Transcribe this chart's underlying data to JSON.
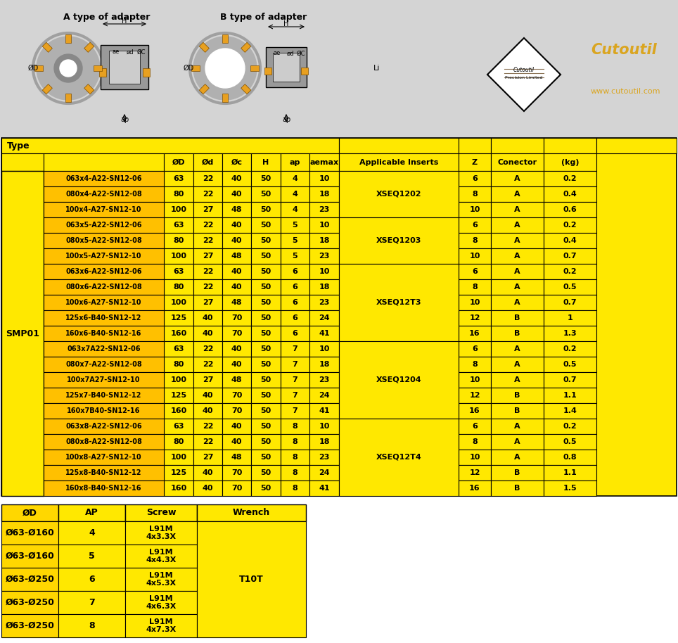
{
  "yellow": "#FFE800",
  "orange_name": "#FFC000",
  "white": "#ffffff",
  "black": "#000000",
  "gray_bg": "#d4d4d4",
  "main_table": {
    "rows": [
      [
        "063x4-A22-SN12-06",
        "63",
        "22",
        "40",
        "50",
        "4",
        "10",
        "6",
        "A",
        "0.2"
      ],
      [
        "080x4-A22-SN12-08",
        "80",
        "22",
        "40",
        "50",
        "4",
        "18",
        "8",
        "A",
        "0.4"
      ],
      [
        "100x4-A27-SN12-10",
        "100",
        "27",
        "48",
        "50",
        "4",
        "23",
        "10",
        "A",
        "0.6"
      ],
      [
        "063x5-A22-SN12-06",
        "63",
        "22",
        "40",
        "50",
        "5",
        "10",
        "6",
        "A",
        "0.2"
      ],
      [
        "080x5-A22-SN12-08",
        "80",
        "22",
        "40",
        "50",
        "5",
        "18",
        "8",
        "A",
        "0.4"
      ],
      [
        "100x5-A27-SN12-10",
        "100",
        "27",
        "48",
        "50",
        "5",
        "23",
        "10",
        "A",
        "0.7"
      ],
      [
        "063x6-A22-SN12-06",
        "63",
        "22",
        "40",
        "50",
        "6",
        "10",
        "6",
        "A",
        "0.2"
      ],
      [
        "080x6-A22-SN12-08",
        "80",
        "22",
        "40",
        "50",
        "6",
        "18",
        "8",
        "A",
        "0.5"
      ],
      [
        "100x6-A27-SN12-10",
        "100",
        "27",
        "48",
        "50",
        "6",
        "23",
        "10",
        "A",
        "0.7"
      ],
      [
        "125x6-B40-SN12-12",
        "125",
        "40",
        "70",
        "50",
        "6",
        "24",
        "12",
        "B",
        "1"
      ],
      [
        "160x6-B40-SN12-16",
        "160",
        "40",
        "70",
        "50",
        "6",
        "41",
        "16",
        "B",
        "1.3"
      ],
      [
        "063x7A22-SN12-06",
        "63",
        "22",
        "40",
        "50",
        "7",
        "10",
        "6",
        "A",
        "0.2"
      ],
      [
        "080x7-A22-SN12-08",
        "80",
        "22",
        "40",
        "50",
        "7",
        "18",
        "8",
        "A",
        "0.5"
      ],
      [
        "100x7A27-SN12-10",
        "100",
        "27",
        "48",
        "50",
        "7",
        "23",
        "10",
        "A",
        "0.7"
      ],
      [
        "125x7-B40-SN12-12",
        "125",
        "40",
        "70",
        "50",
        "7",
        "24",
        "12",
        "B",
        "1.1"
      ],
      [
        "160x7B40-SN12-16",
        "160",
        "40",
        "70",
        "50",
        "7",
        "41",
        "16",
        "B",
        "1.4"
      ],
      [
        "063x8-A22-SN12-06",
        "63",
        "22",
        "40",
        "50",
        "8",
        "10",
        "6",
        "A",
        "0.2"
      ],
      [
        "080x8-A22-SN12-08",
        "80",
        "22",
        "40",
        "50",
        "8",
        "18",
        "8",
        "A",
        "0.5"
      ],
      [
        "100x8-A27-SN12-10",
        "100",
        "27",
        "48",
        "50",
        "8",
        "23",
        "10",
        "A",
        "0.8"
      ],
      [
        "125x8-B40-SN12-12",
        "125",
        "40",
        "70",
        "50",
        "8",
        "24",
        "12",
        "B",
        "1.1"
      ],
      [
        "160x8-B40-SN12-16",
        "160",
        "40",
        "70",
        "50",
        "8",
        "41",
        "16",
        "B",
        "1.5"
      ]
    ],
    "insert_groups": [
      [
        "XSEQ1202",
        0,
        2
      ],
      [
        "XSEQ1203",
        3,
        5
      ],
      [
        "XSEQ12T3",
        6,
        10
      ],
      [
        "XSEQ1204",
        11,
        15
      ],
      [
        "XSEQ12T4",
        16,
        20
      ]
    ]
  },
  "bottom_table": {
    "col_headers": [
      "ØD",
      "AP",
      "Screw",
      "Wrench"
    ],
    "rows": [
      [
        "Ø63-Ø160",
        "4",
        "L91M\n4x3.3X",
        ""
      ],
      [
        "Ø63-Ø160",
        "5",
        "L91M\n4x4.3X",
        ""
      ],
      [
        "Ø63-Ø250",
        "6",
        "L91M\n4x5.3X",
        "T10T"
      ],
      [
        "Ø63-Ø250",
        "7",
        "L91M\n4x6.3X",
        ""
      ],
      [
        "Ø63-Ø250",
        "8",
        "L91M\n4x7.3X",
        ""
      ]
    ]
  }
}
